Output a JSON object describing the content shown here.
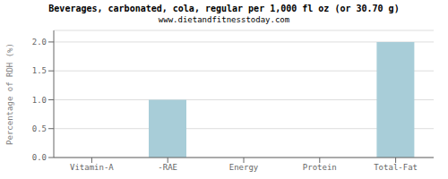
{
  "chart_data": {
    "type": "bar",
    "title": "Beverages, carbonated, cola, regular per 1,000 fl oz (or 30.70 g)",
    "subtitle": "www.dietandfitnesstoday.com",
    "categories": [
      "Vitamin-A",
      "-RAE",
      "Energy",
      "Protein",
      "Total-Fat"
    ],
    "values": [
      0.0,
      1.0,
      0.0,
      0.0,
      2.0
    ],
    "color": "#a8cdd8",
    "ylabel": "Percentage of RDH (%)",
    "ylim": [
      0,
      2.2
    ],
    "yticks": [
      {
        "value": 0.0,
        "label": "0.0"
      },
      0.5,
      {
        "value": 1.0,
        "label": "1.0"
      },
      1.5,
      {
        "value": 2.0,
        "label": "2.0"
      }
    ],
    "grid": true
  }
}
